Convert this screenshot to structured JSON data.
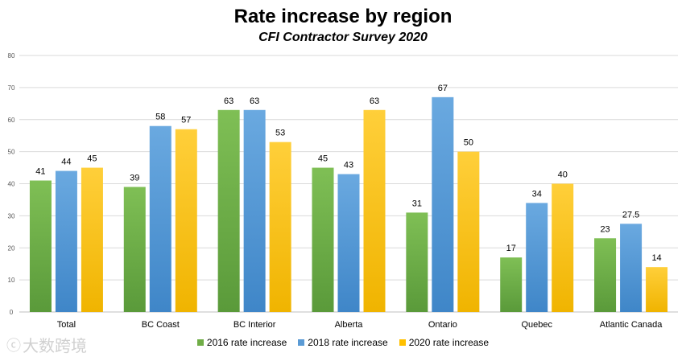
{
  "chart_data": {
    "type": "bar",
    "title": "Rate increase by region",
    "subtitle": "CFI Contractor Survey 2020",
    "categories": [
      "Total",
      "BC Coast",
      "BC Interior",
      "Alberta",
      "Ontario",
      "Quebec",
      "Atlantic Canada"
    ],
    "series": [
      {
        "name": "2016 rate increase",
        "color": "#70ad47",
        "values": [
          41,
          39,
          63,
          45,
          31,
          17,
          23
        ]
      },
      {
        "name": "2018 rate increase",
        "color": "#5b9bd5",
        "values": [
          44,
          58,
          63,
          43,
          67,
          34,
          27.5
        ]
      },
      {
        "name": "2020 rate increase",
        "color": "#ffc000",
        "values": [
          45,
          57,
          53,
          63,
          50,
          40,
          14
        ]
      }
    ],
    "ylim": [
      0,
      80
    ],
    "yticks": [
      0,
      10,
      20,
      30,
      40,
      50,
      60,
      70,
      80
    ],
    "grid": true,
    "legend_position": "bottom",
    "xlabel": "",
    "ylabel": ""
  },
  "watermark": {
    "text": "大数跨境",
    "icon": "logo-mark"
  }
}
